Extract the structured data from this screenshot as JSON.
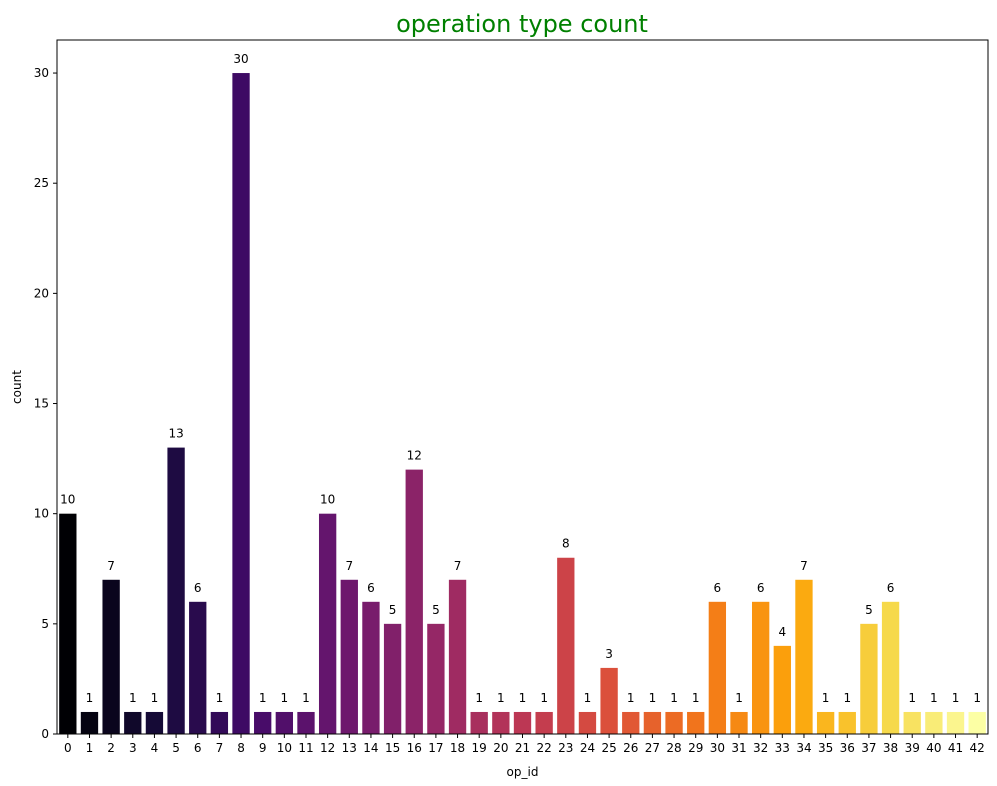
{
  "chart_data": {
    "type": "bar",
    "title": "operation type count",
    "title_color": "#008000",
    "xlabel": "op_id",
    "ylabel": "count",
    "ylim": [
      0,
      31.5
    ],
    "yticks": [
      0,
      5,
      10,
      15,
      20,
      25,
      30
    ],
    "grid": false,
    "legend": "none",
    "categories": [
      "0",
      "1",
      "2",
      "3",
      "4",
      "5",
      "6",
      "7",
      "8",
      "9",
      "10",
      "11",
      "12",
      "13",
      "14",
      "15",
      "16",
      "17",
      "18",
      "19",
      "20",
      "21",
      "22",
      "23",
      "24",
      "25",
      "26",
      "27",
      "28",
      "29",
      "30",
      "31",
      "32",
      "33",
      "34",
      "35",
      "36",
      "37",
      "38",
      "39",
      "40",
      "41",
      "42"
    ],
    "values": [
      10,
      1,
      7,
      1,
      1,
      13,
      6,
      1,
      30,
      1,
      1,
      1,
      10,
      7,
      6,
      5,
      12,
      5,
      7,
      1,
      1,
      1,
      1,
      8,
      1,
      3,
      1,
      1,
      1,
      1,
      6,
      1,
      6,
      4,
      7,
      1,
      1,
      5,
      6,
      1,
      1,
      1,
      1
    ],
    "palette": "inferno",
    "palette_anchors": [
      "#000004",
      "#160b39",
      "#420a68",
      "#6a176e",
      "#932667",
      "#bc3754",
      "#dd513a",
      "#f37819",
      "#fca50a",
      "#f6d746",
      "#fcffa4"
    ]
  }
}
